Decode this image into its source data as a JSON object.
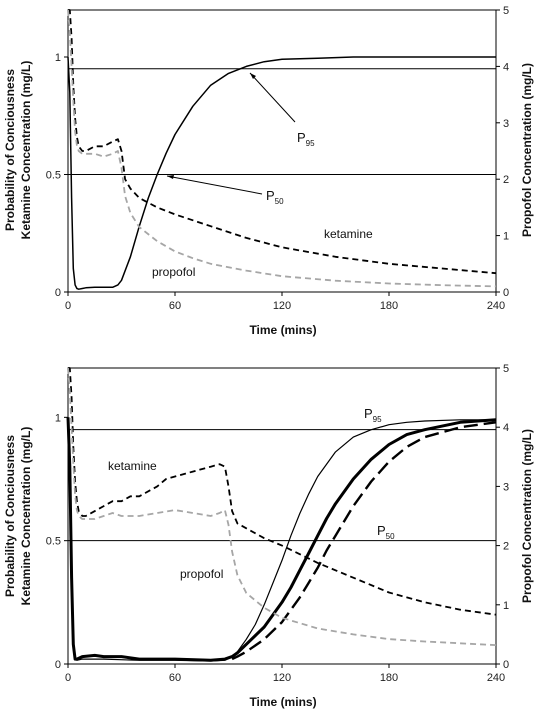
{
  "chart_data": [
    {
      "type": "line",
      "xlabel": "Time (mins)",
      "ylabel_lines": [
        "Probability of Conciousness",
        "Ketamine Concentration (mg/L)"
      ],
      "y2label": "Propofol Concentration (mg/L)",
      "xlim": [
        0,
        240
      ],
      "ylim": [
        0,
        1.2
      ],
      "y2lim": [
        0,
        5
      ],
      "x_ticks": [
        0,
        60,
        120,
        180,
        240
      ],
      "y_ticks": [
        0,
        0.5,
        1
      ],
      "y2_ticks": [
        0,
        1,
        2,
        3,
        4,
        5
      ],
      "grid": false,
      "hlines": [
        0.5,
        0.95
      ],
      "annotations": [
        {
          "text": "P",
          "sub": "95",
          "target": [
            93,
            0.95
          ]
        },
        {
          "text": "P",
          "sub": "50",
          "target": [
            50,
            0.5
          ]
        },
        {
          "text": "ketamine"
        },
        {
          "text": "propofol"
        }
      ],
      "series": [
        {
          "style": "solid-black",
          "axis": "left",
          "x": [
            0,
            1,
            2,
            3,
            4,
            5,
            6,
            8,
            10,
            15,
            20,
            25,
            28,
            30,
            35,
            40,
            45,
            50,
            55,
            60,
            70,
            80,
            90,
            100,
            110,
            120,
            140,
            160,
            180,
            200,
            240
          ],
          "y": [
            1.0,
            0.85,
            0.4,
            0.1,
            0.03,
            0.015,
            0.012,
            0.015,
            0.018,
            0.02,
            0.02,
            0.02,
            0.03,
            0.05,
            0.15,
            0.28,
            0.4,
            0.5,
            0.59,
            0.67,
            0.79,
            0.88,
            0.93,
            0.96,
            0.98,
            0.99,
            0.995,
            1.0,
            1.0,
            1.0,
            1.0
          ]
        },
        {
          "style": "dashed-black",
          "axis": "left",
          "x": [
            0,
            1,
            2,
            3,
            4,
            5,
            6,
            8,
            10,
            15,
            20,
            25,
            28,
            30,
            32,
            35,
            40,
            50,
            60,
            80,
            100,
            120,
            150,
            180,
            210,
            240
          ],
          "y": [
            1.2,
            1.2,
            1.08,
            0.88,
            0.74,
            0.66,
            0.62,
            0.6,
            0.6,
            0.62,
            0.62,
            0.64,
            0.65,
            0.6,
            0.48,
            0.44,
            0.4,
            0.36,
            0.33,
            0.28,
            0.23,
            0.19,
            0.15,
            0.12,
            0.1,
            0.08
          ]
        },
        {
          "style": "dashed-gray",
          "axis": "right",
          "x": [
            0,
            1,
            2,
            3,
            4,
            5,
            6,
            8,
            10,
            15,
            20,
            25,
            28,
            30,
            32,
            35,
            40,
            50,
            60,
            70,
            80,
            100,
            120,
            150,
            180,
            210,
            240
          ],
          "y": [
            5.0,
            4.6,
            4.0,
            3.4,
            2.85,
            2.6,
            2.5,
            2.45,
            2.45,
            2.45,
            2.4,
            2.45,
            2.5,
            2.2,
            1.7,
            1.4,
            1.15,
            0.9,
            0.72,
            0.6,
            0.5,
            0.38,
            0.28,
            0.2,
            0.15,
            0.12,
            0.1
          ]
        }
      ]
    },
    {
      "type": "line",
      "xlabel": "Time (mins)",
      "ylabel_lines": [
        "Probability of Conciousness",
        "Ketamine Concentration (mg/L)"
      ],
      "y2label": "Propofol Concentration (mg/L)",
      "xlim": [
        0,
        240
      ],
      "ylim": [
        0,
        1.2
      ],
      "y2lim": [
        0,
        5
      ],
      "x_ticks": [
        0,
        60,
        120,
        180,
        240
      ],
      "y_ticks": [
        0,
        0.5,
        1
      ],
      "y2_ticks": [
        0,
        1,
        2,
        3,
        4,
        5
      ],
      "grid": false,
      "hlines": [
        0.5,
        0.95
      ],
      "annotations": [
        {
          "text": "ketamine"
        },
        {
          "text": "P",
          "sub": "95"
        },
        {
          "text": "P",
          "sub": "50"
        },
        {
          "text": "propofol"
        }
      ],
      "series": [
        {
          "style": "thin-solid-black",
          "axis": "left",
          "x": [
            0,
            1,
            2,
            3,
            4,
            5,
            8,
            20,
            40,
            60,
            80,
            88,
            92,
            95,
            100,
            105,
            110,
            115,
            120,
            125,
            130,
            135,
            140,
            150,
            160,
            170,
            180,
            190,
            200,
            220,
            240
          ],
          "y": [
            1.0,
            0.8,
            0.35,
            0.08,
            0.02,
            0.015,
            0.02,
            0.02,
            0.015,
            0.015,
            0.012,
            0.015,
            0.03,
            0.05,
            0.1,
            0.16,
            0.24,
            0.33,
            0.42,
            0.52,
            0.61,
            0.69,
            0.76,
            0.86,
            0.92,
            0.95,
            0.97,
            0.98,
            0.985,
            0.99,
            0.99
          ]
        },
        {
          "style": "thick-solid-black",
          "axis": "left",
          "x": [
            0,
            1,
            2,
            3,
            4,
            5,
            8,
            15,
            20,
            30,
            40,
            60,
            80,
            88,
            92,
            95,
            100,
            110,
            120,
            125,
            130,
            135,
            140,
            145,
            150,
            160,
            170,
            180,
            190,
            200,
            220,
            240
          ],
          "y": [
            1.0,
            0.8,
            0.35,
            0.08,
            0.02,
            0.02,
            0.03,
            0.035,
            0.03,
            0.03,
            0.02,
            0.02,
            0.015,
            0.02,
            0.03,
            0.045,
            0.08,
            0.15,
            0.25,
            0.31,
            0.38,
            0.45,
            0.52,
            0.59,
            0.65,
            0.75,
            0.83,
            0.89,
            0.93,
            0.95,
            0.98,
            0.99
          ]
        },
        {
          "style": "longdash-black",
          "axis": "left",
          "x": [
            92,
            95,
            100,
            110,
            120,
            130,
            135,
            140,
            145,
            150,
            160,
            170,
            180,
            190,
            200,
            220,
            240
          ],
          "y": [
            0.02,
            0.03,
            0.05,
            0.1,
            0.17,
            0.27,
            0.33,
            0.39,
            0.46,
            0.52,
            0.64,
            0.74,
            0.82,
            0.88,
            0.92,
            0.96,
            0.98
          ]
        },
        {
          "style": "dashed-black",
          "axis": "left",
          "x": [
            0,
            1,
            2,
            3,
            4,
            5,
            6,
            8,
            10,
            15,
            20,
            25,
            30,
            35,
            40,
            50,
            55,
            60,
            70,
            80,
            85,
            88,
            90,
            92,
            95,
            100,
            110,
            120,
            140,
            160,
            180,
            200,
            220,
            240
          ],
          "y": [
            1.2,
            1.2,
            1.08,
            0.88,
            0.74,
            0.66,
            0.62,
            0.6,
            0.6,
            0.62,
            0.64,
            0.66,
            0.66,
            0.68,
            0.68,
            0.72,
            0.75,
            0.76,
            0.78,
            0.8,
            0.81,
            0.8,
            0.72,
            0.62,
            0.57,
            0.55,
            0.51,
            0.48,
            0.41,
            0.35,
            0.29,
            0.25,
            0.22,
            0.2
          ]
        },
        {
          "style": "dashed-gray",
          "axis": "right",
          "x": [
            0,
            1,
            2,
            3,
            4,
            5,
            6,
            8,
            10,
            15,
            20,
            25,
            30,
            40,
            50,
            60,
            70,
            80,
            85,
            88,
            90,
            92,
            95,
            100,
            110,
            120,
            140,
            160,
            180,
            200,
            220,
            240
          ],
          "y": [
            5.0,
            4.6,
            4.0,
            3.4,
            2.85,
            2.6,
            2.5,
            2.45,
            2.45,
            2.45,
            2.5,
            2.55,
            2.5,
            2.5,
            2.55,
            2.6,
            2.55,
            2.5,
            2.55,
            2.6,
            2.35,
            1.9,
            1.5,
            1.2,
            0.95,
            0.78,
            0.6,
            0.5,
            0.42,
            0.38,
            0.35,
            0.32
          ]
        }
      ]
    }
  ]
}
